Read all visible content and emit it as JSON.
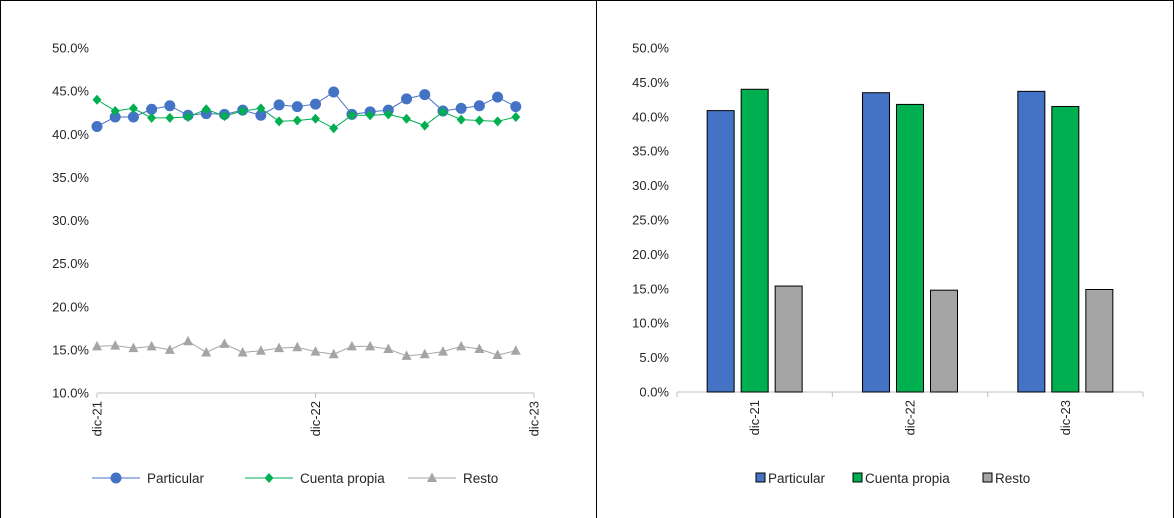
{
  "chart_data": [
    {
      "type": "line",
      "title": "",
      "xlabel": "",
      "ylabel": "",
      "ylim": [
        0.1,
        0.5
      ],
      "y_ticks": [
        "10.0%",
        "15.0%",
        "20.0%",
        "25.0%",
        "30.0%",
        "35.0%",
        "40.0%",
        "45.0%",
        "50.0%"
      ],
      "x_tick_labels": [
        "dic-21",
        "dic-22",
        "dic-23"
      ],
      "x_tick_months": [
        0,
        12,
        24
      ],
      "grid": false,
      "legend_position": "bottom",
      "series": [
        {
          "name": "Particular",
          "color": "#4472C4",
          "marker": "circle",
          "values": [
            0.409,
            0.42,
            0.42,
            0.429,
            0.433,
            0.422,
            0.424,
            0.423,
            0.428,
            0.422,
            0.434,
            0.432,
            0.435,
            0.449,
            0.423,
            0.426,
            0.428,
            0.441,
            0.446,
            0.427,
            0.43,
            0.433,
            0.443,
            0.432
          ]
        },
        {
          "name": "Cuenta propia",
          "color": "#00B050",
          "marker": "diamond",
          "values": [
            0.44,
            0.427,
            0.43,
            0.419,
            0.419,
            0.42,
            0.429,
            0.421,
            0.427,
            0.43,
            0.415,
            0.416,
            0.418,
            0.407,
            0.422,
            0.422,
            0.423,
            0.418,
            0.41,
            0.426,
            0.417,
            0.416,
            0.415,
            0.42
          ]
        },
        {
          "name": "Resto",
          "color": "#A5A5A5",
          "marker": "triangle",
          "values": [
            0.154,
            0.155,
            0.152,
            0.154,
            0.15,
            0.16,
            0.147,
            0.157,
            0.147,
            0.149,
            0.152,
            0.153,
            0.148,
            0.145,
            0.154,
            0.154,
            0.151,
            0.143,
            0.145,
            0.148,
            0.154,
            0.151,
            0.144,
            0.149
          ]
        }
      ]
    },
    {
      "type": "bar",
      "title": "",
      "xlabel": "",
      "ylabel": "",
      "ylim": [
        0.0,
        0.5
      ],
      "y_ticks": [
        "0.0%",
        "5.0%",
        "10.0%",
        "15.0%",
        "20.0%",
        "25.0%",
        "30.0%",
        "35.0%",
        "40.0%",
        "45.0%",
        "50.0%"
      ],
      "categories": [
        "dic-21",
        "dic-22",
        "dic-23"
      ],
      "grid": false,
      "legend_position": "bottom",
      "series": [
        {
          "name": "Particular",
          "color": "#4472C4",
          "values": [
            0.409,
            0.435,
            0.437
          ]
        },
        {
          "name": "Cuenta propia",
          "color": "#00B050",
          "values": [
            0.44,
            0.418,
            0.415
          ]
        },
        {
          "name": "Resto",
          "color": "#A5A5A5",
          "values": [
            0.154,
            0.148,
            0.149
          ]
        }
      ]
    }
  ]
}
